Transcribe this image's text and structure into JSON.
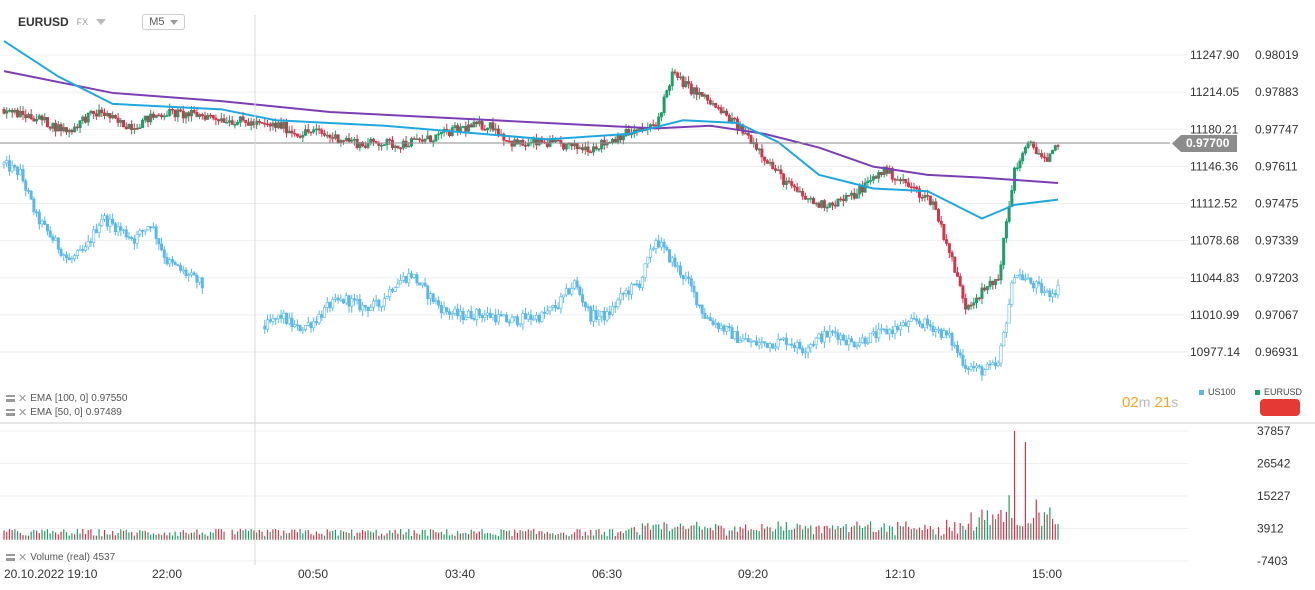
{
  "header": {
    "symbol": "EURUSD",
    "symbol_type": "FX",
    "timeframe": "M5"
  },
  "indicators": {
    "ema100_label": "EMA",
    "ema100_params": "[100,  0]",
    "ema100_value": "0.97550",
    "ema50_label": "EMA",
    "ema50_params": "[50,  0]",
    "ema50_value": "0.97489",
    "volume_label": "Volume",
    "volume_params": "(real)",
    "volume_value": "4537"
  },
  "legend": {
    "us100": "US100",
    "eurusd": "EURUSD"
  },
  "countdown": {
    "minutes": "02",
    "minutes_unit": "m",
    "seconds": "21",
    "seconds_unit": "s"
  },
  "current_price": "0.97700",
  "colors": {
    "up": "#1e9e6a",
    "down": "#d0364b",
    "us100": "#5bb8e8",
    "ema100": "#7b3fb5",
    "ema50": "#1fa8de",
    "accent_countdown": "#f5a623"
  },
  "chart_data": {
    "type": "candlestick",
    "title": "",
    "x_tick_labels": [
      "20.10.2022  19:10",
      "22:00",
      "00:50",
      "03:40",
      "06:30",
      "09:20",
      "12:10",
      "15:00"
    ],
    "us100_axis_ticks": [
      "11247.90",
      "11214.05",
      "11180.21",
      "11146.36",
      "11112.52",
      "11078.68",
      "11044.83",
      "11010.99",
      "10977.14"
    ],
    "eurusd_axis_ticks": [
      "0.98019",
      "0.97883",
      "0.97747",
      "0.97611",
      "0.97475",
      "0.97339",
      "0.97203",
      "0.97067",
      "0.96931"
    ],
    "eurusd_ylim": [
      0.96862,
      0.98087
    ],
    "volume_axis_ticks": [
      "37857",
      "26542",
      "15227",
      "3912",
      "-7403"
    ],
    "volume_ylim": [
      -7403,
      40000
    ],
    "series": [
      {
        "name": "EURUSD",
        "kind": "candles",
        "close_points": [
          [
            0,
            0.9782
          ],
          [
            6,
            0.978
          ],
          [
            12,
            0.9779
          ],
          [
            18,
            0.9776
          ],
          [
            24,
            0.9774
          ],
          [
            30,
            0.9779
          ],
          [
            36,
            0.9781
          ],
          [
            42,
            0.9777
          ],
          [
            48,
            0.9776
          ],
          [
            54,
            0.9779
          ],
          [
            60,
            0.9781
          ],
          [
            66,
            0.978
          ],
          [
            72,
            0.978
          ],
          [
            78,
            0.9779
          ],
          [
            84,
            0.9778
          ],
          [
            90,
            0.9777
          ],
          [
            96,
            0.9776
          ],
          [
            102,
            0.9776
          ],
          [
            108,
            0.9773
          ],
          [
            114,
            0.9774
          ],
          [
            120,
            0.9772
          ],
          [
            126,
            0.9771
          ],
          [
            132,
            0.9769
          ],
          [
            138,
            0.977
          ],
          [
            144,
            0.9769
          ],
          [
            150,
            0.977
          ],
          [
            156,
            0.9771
          ],
          [
            162,
            0.9773
          ],
          [
            168,
            0.9775
          ],
          [
            174,
            0.9776
          ],
          [
            180,
            0.9776
          ],
          [
            186,
            0.977
          ],
          [
            192,
            0.9769
          ],
          [
            198,
            0.977
          ],
          [
            204,
            0.9769
          ],
          [
            210,
            0.9768
          ],
          [
            216,
            0.9768
          ],
          [
            222,
            0.977
          ],
          [
            228,
            0.9773
          ],
          [
            234,
            0.9774
          ],
          [
            240,
            0.9776
          ],
          [
            246,
            0.9795
          ],
          [
            252,
            0.979
          ],
          [
            258,
            0.9786
          ],
          [
            264,
            0.9781
          ],
          [
            270,
            0.9776
          ],
          [
            276,
            0.977
          ],
          [
            282,
            0.9762
          ],
          [
            288,
            0.9755
          ],
          [
            294,
            0.975
          ],
          [
            300,
            0.9747
          ],
          [
            306,
            0.9748
          ],
          [
            312,
            0.975
          ],
          [
            318,
            0.9755
          ],
          [
            324,
            0.976
          ],
          [
            330,
            0.9756
          ],
          [
            336,
            0.9752
          ],
          [
            342,
            0.9748
          ],
          [
            348,
            0.973
          ],
          [
            354,
            0.971
          ],
          [
            360,
            0.9715
          ],
          [
            366,
            0.972
          ],
          [
            372,
            0.976
          ],
          [
            378,
            0.977
          ],
          [
            384,
            0.9762
          ],
          [
            388,
            0.977
          ]
        ]
      },
      {
        "name": "US100",
        "kind": "candles",
        "close_points": [
          [
            0,
            11148
          ],
          [
            6,
            11140
          ],
          [
            12,
            11100
          ],
          [
            18,
            11080
          ],
          [
            24,
            11060
          ],
          [
            30,
            11070
          ],
          [
            36,
            11100
          ],
          [
            42,
            11090
          ],
          [
            48,
            11080
          ],
          [
            54,
            11095
          ],
          [
            60,
            11060
          ],
          [
            66,
            11050
          ],
          [
            72,
            11040
          ],
          [
            78,
            11020
          ],
          [
            84,
            11010
          ],
          [
            90,
            11005
          ],
          [
            96,
            11000
          ],
          [
            102,
            11010
          ],
          [
            108,
            10998
          ],
          [
            114,
            11005
          ],
          [
            120,
            11020
          ],
          [
            126,
            11025
          ],
          [
            132,
            11018
          ],
          [
            138,
            11020
          ],
          [
            144,
            11040
          ],
          [
            150,
            11048
          ],
          [
            156,
            11030
          ],
          [
            162,
            11015
          ],
          [
            168,
            11010
          ],
          [
            174,
            11012
          ],
          [
            180,
            11010
          ],
          [
            186,
            11005
          ],
          [
            192,
            11008
          ],
          [
            198,
            11010
          ],
          [
            204,
            11020
          ],
          [
            210,
            11040
          ],
          [
            216,
            11010
          ],
          [
            222,
            11010
          ],
          [
            228,
            11030
          ],
          [
            234,
            11040
          ],
          [
            240,
            11080
          ],
          [
            246,
            11060
          ],
          [
            252,
            11040
          ],
          [
            258,
            11010
          ],
          [
            264,
            11000
          ],
          [
            270,
            10990
          ],
          [
            276,
            10985
          ],
          [
            282,
            10985
          ],
          [
            288,
            10988
          ],
          [
            294,
            10980
          ],
          [
            300,
            10990
          ],
          [
            306,
            10995
          ],
          [
            312,
            10985
          ],
          [
            318,
            10990
          ],
          [
            324,
            10995
          ],
          [
            330,
            11000
          ],
          [
            336,
            11005
          ],
          [
            342,
            11000
          ],
          [
            348,
            10990
          ],
          [
            354,
            10965
          ],
          [
            360,
            10960
          ],
          [
            366,
            10965
          ],
          [
            372,
            11050
          ],
          [
            378,
            11040
          ],
          [
            384,
            11030
          ],
          [
            388,
            11035
          ]
        ]
      },
      {
        "name": "EMA [100, 0]",
        "kind": "line",
        "points": [
          [
            0,
            0.9796
          ],
          [
            40,
            0.9788
          ],
          [
            80,
            0.9785
          ],
          [
            120,
            0.9781
          ],
          [
            160,
            0.9779
          ],
          [
            200,
            0.9777
          ],
          [
            240,
            0.9775
          ],
          [
            260,
            0.9776
          ],
          [
            280,
            0.9773
          ],
          [
            300,
            0.9768
          ],
          [
            320,
            0.9761
          ],
          [
            340,
            0.9758
          ],
          [
            360,
            0.9757
          ],
          [
            388,
            0.9755
          ]
        ]
      },
      {
        "name": "EMA [50, 0]",
        "kind": "line",
        "points": [
          [
            0,
            0.9807
          ],
          [
            20,
            0.9794
          ],
          [
            40,
            0.9784
          ],
          [
            80,
            0.9782
          ],
          [
            100,
            0.9778
          ],
          [
            140,
            0.9776
          ],
          [
            200,
            0.9771
          ],
          [
            230,
            0.9773
          ],
          [
            250,
            0.9778
          ],
          [
            270,
            0.9777
          ],
          [
            285,
            0.977
          ],
          [
            300,
            0.9758
          ],
          [
            320,
            0.9753
          ],
          [
            340,
            0.9752
          ],
          [
            352,
            0.9746
          ],
          [
            360,
            0.9742
          ],
          [
            372,
            0.9747
          ],
          [
            388,
            0.97489
          ]
        ]
      }
    ],
    "volume": {
      "kind": "bars",
      "last_value": 4537,
      "spikes": [
        [
          372,
          37857
        ],
        [
          376,
          34000
        ],
        [
          370,
          15500
        ],
        [
          380,
          14000
        ],
        [
          366,
          9000
        ]
      ]
    }
  }
}
